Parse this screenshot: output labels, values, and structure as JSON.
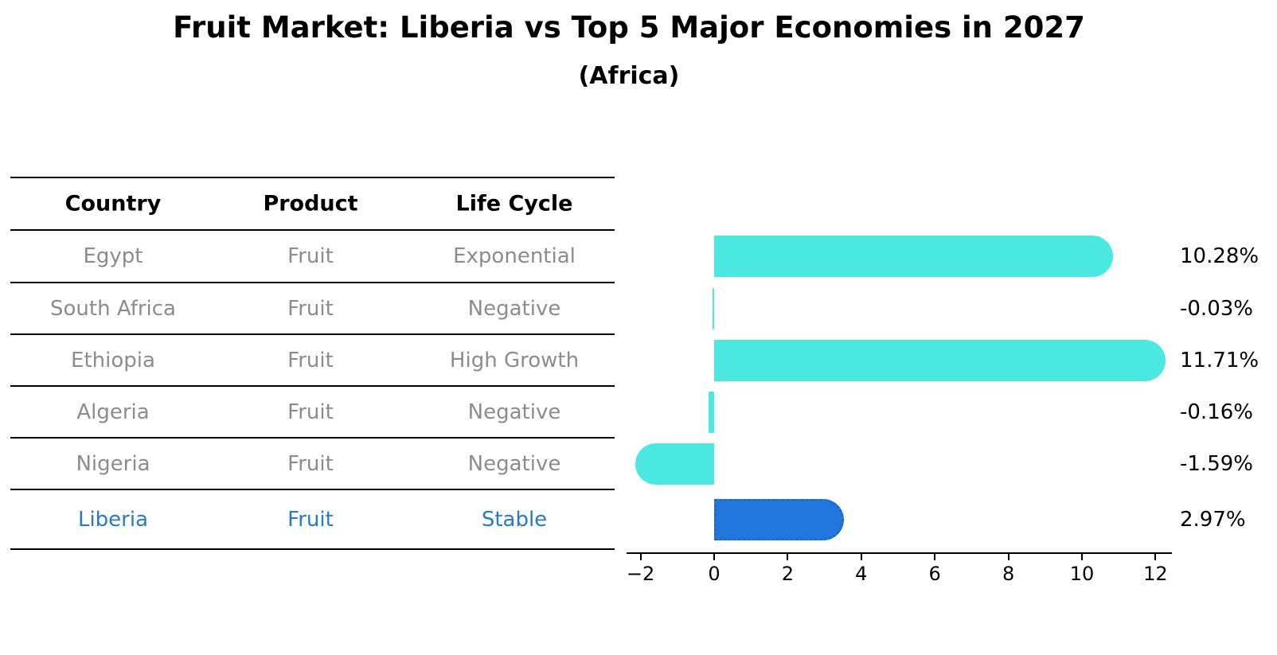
{
  "title": "Fruit Market: Liberia vs Top 5 Major Economies in 2027",
  "subtitle": "(Africa)",
  "table": {
    "headers": [
      "Country",
      "Product",
      "Life Cycle"
    ],
    "rows": [
      {
        "country": "Egypt",
        "product": "Fruit",
        "life_cycle": "Exponential",
        "highlight": false
      },
      {
        "country": "South Africa",
        "product": "Fruit",
        "life_cycle": "Negative",
        "highlight": false
      },
      {
        "country": "Ethiopia",
        "product": "Fruit",
        "life_cycle": "High Growth",
        "highlight": false
      },
      {
        "country": "Algeria",
        "product": "Fruit",
        "life_cycle": "Negative",
        "highlight": false
      },
      {
        "country": "Nigeria",
        "product": "Fruit",
        "life_cycle": "Negative",
        "highlight": false
      },
      {
        "country": "Liberia",
        "product": "Fruit",
        "life_cycle": "Stable",
        "highlight": true
      }
    ]
  },
  "chart_data": {
    "type": "bar",
    "orientation": "horizontal",
    "categories": [
      "Egypt",
      "South Africa",
      "Ethiopia",
      "Algeria",
      "Nigeria",
      "Liberia"
    ],
    "values": [
      10.28,
      -0.03,
      11.71,
      -0.16,
      -1.59,
      2.97
    ],
    "value_labels": [
      "10.28%",
      "-0.03%",
      "11.71%",
      "-0.16%",
      "-1.59%",
      "2.97%"
    ],
    "x_ticks": [
      -2,
      0,
      2,
      4,
      6,
      8,
      10,
      12
    ],
    "x_tick_labels": [
      "−2",
      "0",
      "2",
      "4",
      "6",
      "8",
      "10",
      "12"
    ],
    "xlim": [
      -2.35,
      12.45
    ],
    "grid": false,
    "legend_position": "none",
    "bar_color": "#4AE8E0",
    "highlight_color": "#2177DB",
    "highlight_border_color": "#1C6ACD",
    "highlight_index": 5,
    "highlight_border_style": "dotted"
  },
  "colors": {
    "background": "#FFFFFF",
    "table_text": "#8C8C8C",
    "highlight_text": "#2679CC",
    "heading_text": "#000000",
    "axis": "#000000"
  }
}
